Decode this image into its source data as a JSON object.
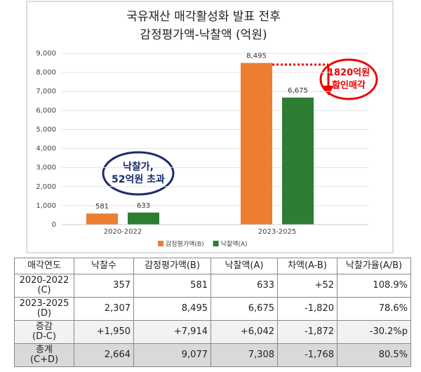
{
  "chart_data": {
    "type": "bar",
    "title": "국유재산 매각활성화 발표 전후",
    "subtitle": "감정평가액-낙찰액 (억원)",
    "categories": [
      "2020-2022",
      "2023-2025"
    ],
    "series": [
      {
        "name": "감정평가액(B)",
        "color": "#ed7d31",
        "values": [
          581,
          8495
        ],
        "value_labels": [
          "581",
          "8,495"
        ]
      },
      {
        "name": "낙찰액(A)",
        "color": "#2e7d32",
        "values": [
          633,
          6675
        ],
        "value_labels": [
          "633",
          "6,675"
        ]
      }
    ],
    "ylim": [
      0,
      9000
    ],
    "yticks": [
      0,
      {
        "value": 1000,
        "label": "1,000"
      },
      {
        "value": 2000,
        "label": "2,000"
      },
      {
        "value": 3000,
        "label": "3,000"
      },
      {
        "value": 4000,
        "label": "4,000"
      },
      {
        "value": 5000,
        "label": "5,000"
      },
      {
        "value": 6000,
        "label": "6,000"
      },
      {
        "value": 7000,
        "label": "7,000"
      },
      {
        "value": 8000,
        "label": "8,000"
      },
      {
        "value": 9000,
        "label": "9,000"
      }
    ],
    "grid": true,
    "legend": "bottom",
    "annotations": [
      [
        "낙찰가,",
        "52억원 초과"
      ],
      [
        "1820억원",
        "할인매각"
      ]
    ]
  },
  "table": {
    "header": [
      "매각연도",
      "낙찰수",
      "감정평가액(B)",
      "낙찰액(A)",
      "차액(A-B)",
      "낙찰가율(A/B)"
    ],
    "rows": [
      [
        "2020-2022\n(C)",
        "357",
        "581",
        "633",
        "+52",
        "108.9%"
      ],
      [
        "2023-2025\n(D)",
        "2,307",
        "8,495",
        "6,675",
        "-1,820",
        "78.6%"
      ],
      [
        "증감\n(D-C)",
        "+1,950",
        "+7,914",
        "+6,042",
        "-1,872",
        "-30.2%p"
      ],
      [
        "총계\n(C+D)",
        "2,664",
        "9,077",
        "7,308",
        "-1,768",
        "80.5%"
      ]
    ]
  }
}
